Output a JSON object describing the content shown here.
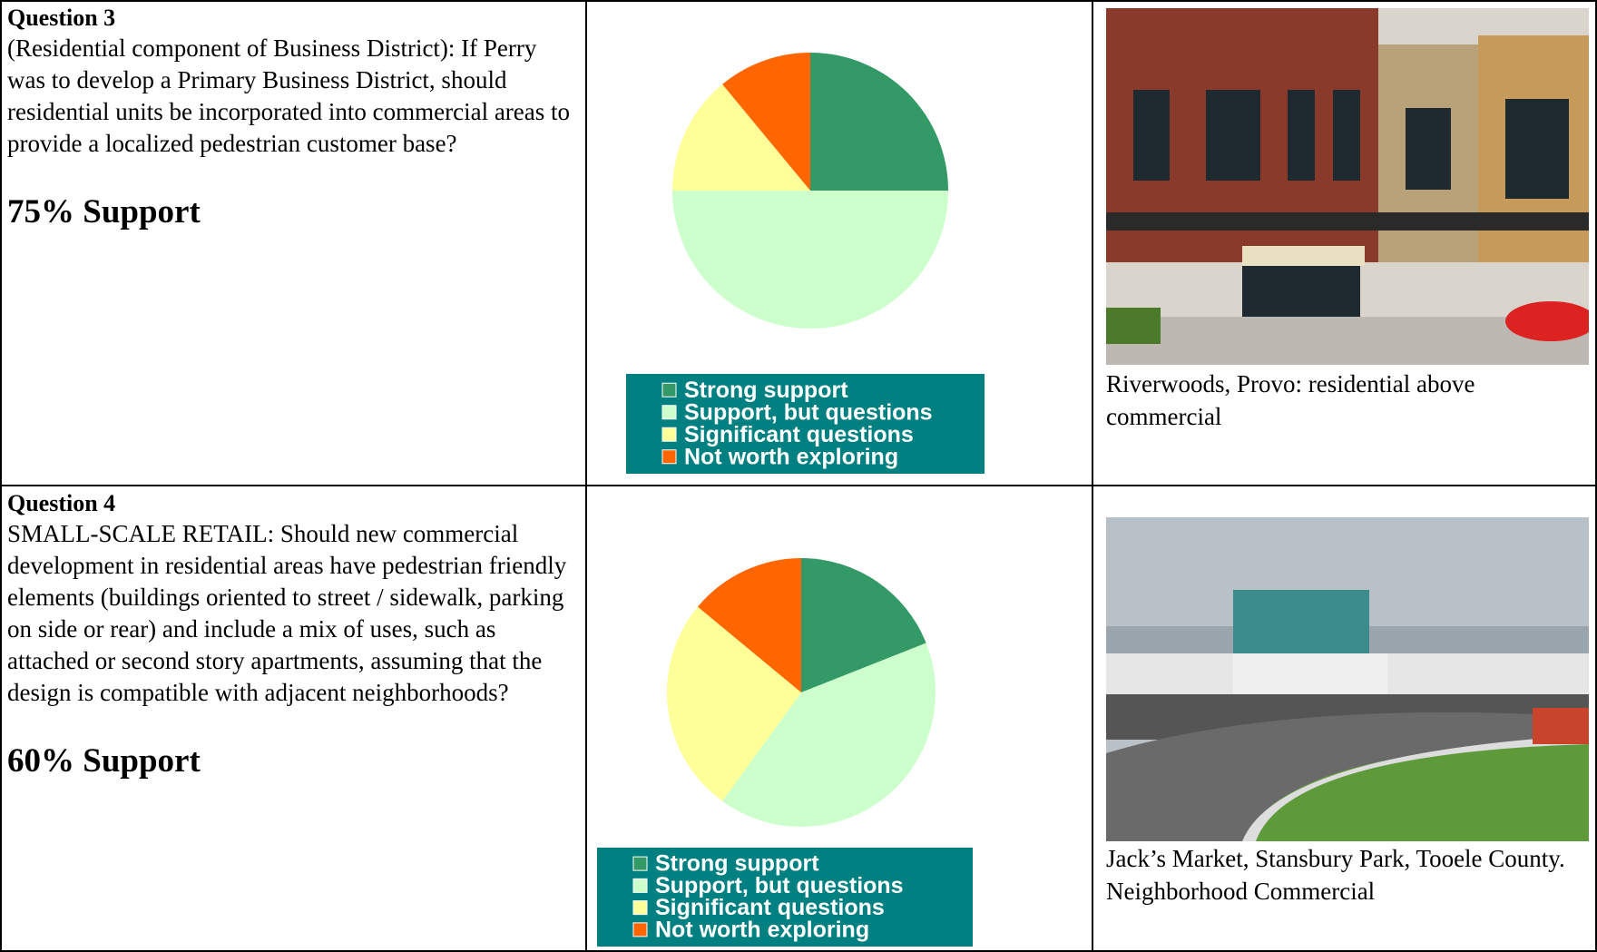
{
  "rows": [
    {
      "question_label": "Question 3",
      "question_text": "(Residential component of Business District): If Perry was to develop a Primary Business District, should residential units be incorporated into commercial areas to provide a localized pedestrian customer base?",
      "support": "75% Support",
      "caption": "Riverwoods, Provo: residential above commercial"
    },
    {
      "question_label": "Question 4",
      "question_text": "SMALL-SCALE RETAIL:  Should new commercial development in residential areas have pedestrian friendly elements (buildings oriented to street / sidewalk, parking on side or rear) and include a mix of uses, such as attached or second story apartments, assuming that the design is compatible with adjacent neighborhoods?",
      "support": "60% Support",
      "caption": "Jack’s Market, Stansbury Park, Tooele County.  Neighborhood Commercial"
    }
  ],
  "chart_data": [
    {
      "type": "pie",
      "categories": [
        "Strong support",
        "Support, but questions",
        "Significant questions",
        "Not worth exploring"
      ],
      "values": [
        25,
        50,
        14,
        11
      ],
      "colors": [
        "#339966",
        "#ccffcc",
        "#ffff99",
        "#ff6600"
      ],
      "legend_color": "#008080"
    },
    {
      "type": "pie",
      "categories": [
        "Strong support",
        "Support, but questions",
        "Significant questions",
        "Not worth exploring"
      ],
      "values": [
        19,
        41,
        26,
        14
      ],
      "colors": [
        "#339966",
        "#ccffcc",
        "#ffff99",
        "#ff6600"
      ],
      "legend_color": "#008080"
    }
  ]
}
